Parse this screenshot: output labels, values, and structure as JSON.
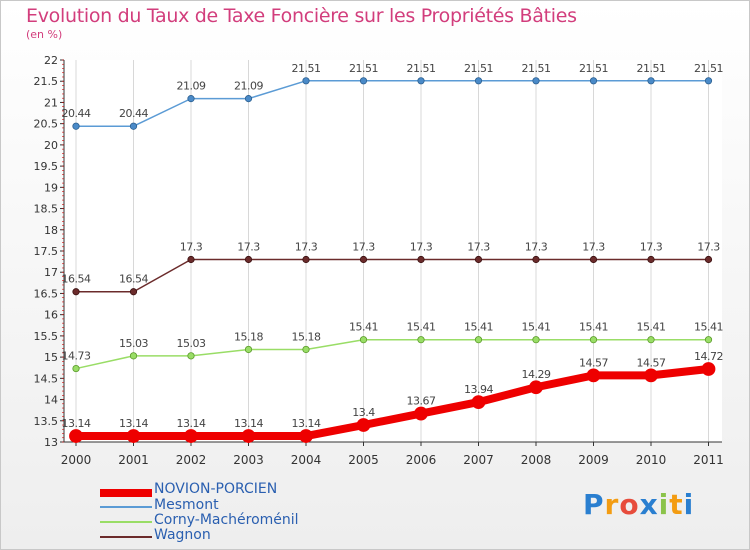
{
  "page": {
    "title": "Evolution du Taux de Taxe Foncière sur les Propriétés Bâties",
    "unit": "(en %)",
    "brand": "Proxiti"
  },
  "chart_data": {
    "type": "line",
    "title": "Evolution du Taux de Taxe Foncière sur les Propriétés Bâties",
    "ylabel": "(en %)",
    "x": [
      "2000",
      "2001",
      "2002",
      "2003",
      "2004",
      "2005",
      "2006",
      "2007",
      "2008",
      "2009",
      "2010",
      "2011"
    ],
    "ylim": [
      13,
      22
    ],
    "yticks": [
      "13",
      "13.5",
      "14",
      "14.5",
      "15",
      "15.5",
      "16",
      "16.5",
      "17",
      "17.5",
      "18",
      "18.5",
      "19",
      "19.5",
      "20",
      "20.5",
      "21",
      "21.5",
      "22"
    ],
    "grid": "vertical",
    "legend_position": "bottom-left",
    "series": [
      {
        "name": "NOVION-PORCIEN",
        "color": "#ee0000",
        "values": [
          13.14,
          13.14,
          13.14,
          13.14,
          13.14,
          13.4,
          13.67,
          13.94,
          14.29,
          14.57,
          14.57,
          14.72
        ]
      },
      {
        "name": "Mesmont",
        "color": "#5b9bd5",
        "values": [
          20.44,
          20.44,
          21.09,
          21.09,
          21.51,
          21.51,
          21.51,
          21.51,
          21.51,
          21.51,
          21.51,
          21.51
        ]
      },
      {
        "name": "Corny-Machéroménil",
        "color": "#99dd66",
        "values": [
          14.73,
          15.03,
          15.03,
          15.18,
          15.18,
          15.41,
          15.41,
          15.41,
          15.41,
          15.41,
          15.41,
          15.41
        ]
      },
      {
        "name": "Wagnon",
        "color": "#6b2b2b",
        "values": [
          16.54,
          16.54,
          17.3,
          17.3,
          17.3,
          17.3,
          17.3,
          17.3,
          17.3,
          17.3,
          17.3,
          17.3
        ]
      }
    ]
  }
}
